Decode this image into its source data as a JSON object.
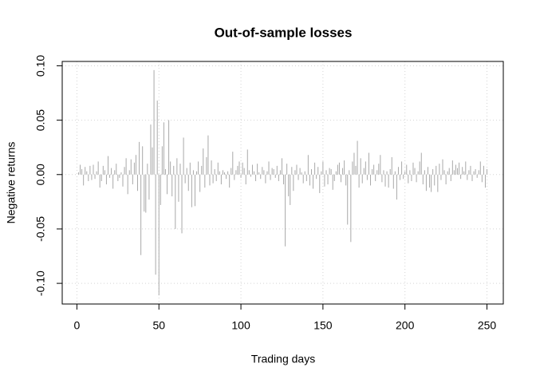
{
  "chart_data": {
    "type": "bar",
    "title": "Out-of-sample losses",
    "x_label": "Trading days",
    "y_label": "Negative returns",
    "color": "#a9a9a9",
    "grid": true,
    "xlim": [
      -8.96,
      259.96
    ],
    "xticks": [
      0,
      50,
      100,
      150,
      200,
      250
    ],
    "ylim": [
      -0.119,
      0.104
    ],
    "yticks": [
      {
        "value": -0.1,
        "label": "-0.10"
      },
      {
        "value": -0.05,
        "label": "-0.05"
      },
      {
        "value": 0,
        "label": "0.00"
      },
      {
        "value": 0.05,
        "label": "0.05"
      },
      {
        "value": 0.1,
        "label": "0.10"
      }
    ],
    "x": [
      1,
      2,
      3,
      4,
      5,
      6,
      7,
      8,
      9,
      10,
      11,
      12,
      13,
      14,
      15,
      16,
      17,
      18,
      19,
      20,
      21,
      22,
      23,
      24,
      25,
      26,
      27,
      28,
      29,
      30,
      31,
      32,
      33,
      34,
      35,
      36,
      37,
      38,
      39,
      40,
      41,
      42,
      43,
      44,
      45,
      46,
      47,
      48,
      49,
      50,
      51,
      52,
      53,
      54,
      55,
      56,
      57,
      58,
      59,
      60,
      61,
      62,
      63,
      64,
      65,
      66,
      67,
      68,
      69,
      70,
      71,
      72,
      73,
      74,
      75,
      76,
      77,
      78,
      79,
      80,
      81,
      82,
      83,
      84,
      85,
      86,
      87,
      88,
      89,
      90,
      91,
      92,
      93,
      94,
      95,
      96,
      97,
      98,
      99,
      100,
      101,
      102,
      103,
      104,
      105,
      106,
      107,
      108,
      109,
      110,
      111,
      112,
      113,
      114,
      115,
      116,
      117,
      118,
      119,
      120,
      121,
      122,
      123,
      124,
      125,
      126,
      127,
      128,
      129,
      130,
      131,
      132,
      133,
      134,
      135,
      136,
      137,
      138,
      139,
      140,
      141,
      142,
      143,
      144,
      145,
      146,
      147,
      148,
      149,
      150,
      151,
      152,
      153,
      154,
      155,
      156,
      157,
      158,
      159,
      160,
      161,
      162,
      163,
      164,
      165,
      166,
      167,
      168,
      169,
      170,
      171,
      172,
      173,
      174,
      175,
      176,
      177,
      178,
      179,
      180,
      181,
      182,
      183,
      184,
      185,
      186,
      187,
      188,
      189,
      190,
      191,
      192,
      193,
      194,
      195,
      196,
      197,
      198,
      199,
      200,
      201,
      202,
      203,
      204,
      205,
      206,
      207,
      208,
      209,
      210,
      211,
      212,
      213,
      214,
      215,
      216,
      217,
      218,
      219,
      220,
      221,
      222,
      223,
      224,
      225,
      226,
      227,
      228,
      229,
      230,
      231,
      232,
      233,
      234,
      235,
      236,
      237,
      238,
      239,
      240,
      241,
      242,
      243,
      244,
      245,
      246,
      247,
      248,
      249,
      250
    ],
    "values": [
      0.002,
      0.009,
      0.005,
      -0.01,
      0.007,
      0.003,
      -0.006,
      0.008,
      -0.005,
      0.009,
      -0.004,
      0.003,
      0.012,
      -0.012,
      -0.006,
      0.008,
      0.004,
      -0.009,
      0.017,
      -0.003,
      0.006,
      -0.013,
      0.004,
      0.01,
      -0.006,
      -0.003,
      0.002,
      -0.011,
      0.007,
      0.015,
      -0.018,
      0.004,
      0.014,
      -0.009,
      0.011,
      0.018,
      -0.015,
      0.03,
      -0.074,
      0.026,
      -0.034,
      -0.035,
      0.01,
      -0.023,
      0.046,
      0.025,
      0.096,
      -0.092,
      0.068,
      -0.111,
      -0.028,
      0.026,
      0.048,
      0.005,
      -0.018,
      0.05,
      0.012,
      -0.02,
      0.008,
      -0.05,
      0.015,
      -0.025,
      0.01,
      -0.054,
      0.034,
      -0.008,
      0.006,
      -0.015,
      0.011,
      -0.03,
      0.004,
      -0.029,
      0.003,
      0.012,
      -0.016,
      0.008,
      0.024,
      -0.012,
      0.016,
      0.036,
      -0.01,
      0.013,
      -0.008,
      0.005,
      -0.006,
      0.011,
      0.003,
      -0.009,
      0.004,
      0.002,
      -0.004,
      0.003,
      -0.012,
      0.006,
      0.021,
      -0.005,
      0.004,
      0.008,
      0.012,
      -0.003,
      0.011,
      0.006,
      -0.009,
      0.023,
      0.004,
      -0.002,
      0.009,
      0.003,
      -0.006,
      0.01,
      0.002,
      -0.004,
      0.007,
      0.004,
      -0.008,
      0.003,
      0.012,
      -0.005,
      0.006,
      0.005,
      -0.003,
      0.008,
      -0.006,
      0.004,
      0.015,
      -0.009,
      -0.066,
      0.01,
      -0.02,
      -0.028,
      0.007,
      -0.015,
      0.004,
      0.009,
      -0.005,
      0.006,
      0.002,
      -0.008,
      0.003,
      -0.006,
      0.018,
      -0.01,
      0.005,
      -0.013,
      0.011,
      -0.004,
      0.007,
      -0.017,
      0.003,
      0.012,
      -0.011,
      0.004,
      -0.009,
      0.006,
      0.005,
      -0.014,
      -0.006,
      0.003,
      0.009,
      0.011,
      -0.007,
      0.006,
      0.013,
      -0.01,
      -0.046,
      0.004,
      -0.062,
      0.012,
      0.02,
      0.008,
      0.031,
      -0.012,
      0.015,
      -0.008,
      0.006,
      0.012,
      -0.005,
      0.02,
      -0.01,
      0.005,
      0.009,
      -0.006,
      0.004,
      0.01,
      0.018,
      -0.007,
      0.004,
      -0.011,
      0.003,
      -0.012,
      0.005,
      0.016,
      -0.013,
      0.003,
      -0.023,
      0.007,
      -0.005,
      0.012,
      -0.004,
      0.003,
      0.009,
      -0.008,
      0.004,
      -0.006,
      0.011,
      0.006,
      -0.007,
      0.003,
      0.012,
      0.02,
      -0.009,
      0.004,
      -0.015,
      0.007,
      -0.012,
      -0.016,
      0.005,
      -0.01,
      0.008,
      -0.016,
      0.01,
      -0.005,
      0.014,
      0.004,
      -0.009,
      0.003,
      0.006,
      -0.006,
      0.013,
      0.004,
      0.009,
      0.006,
      0.011,
      -0.004,
      0.007,
      0.003,
      0.012,
      -0.005,
      0.004,
      0.008,
      -0.006,
      0.003,
      0.005,
      -0.003,
      0.004,
      0.012,
      -0.007,
      0.008,
      -0.012,
      0.005
    ]
  }
}
